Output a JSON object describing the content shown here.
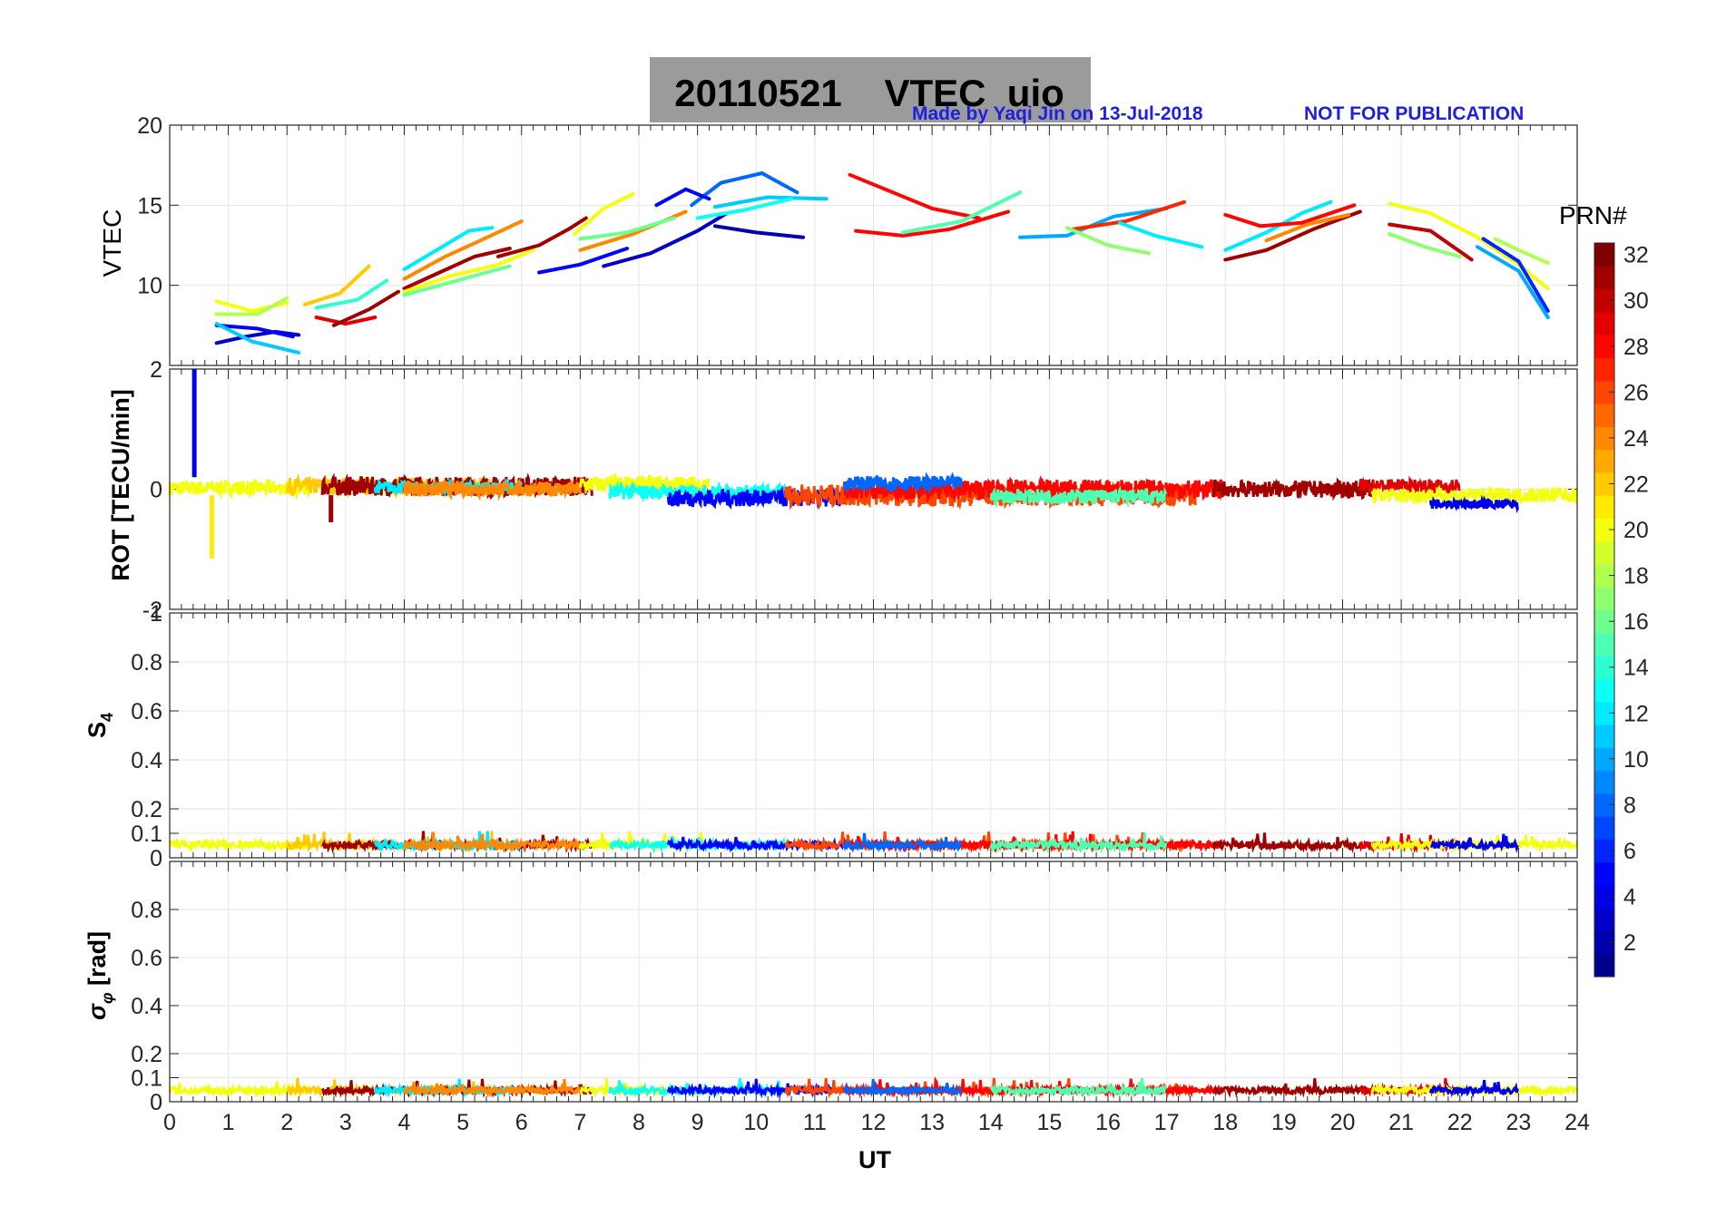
{
  "title": "20110521    VTEC  uio",
  "made_by": "Made by Yaqi Jin on 13-Jul-2018",
  "not_for_publication": "NOT FOR PUBLICATION",
  "colorbar_label": "PRN#",
  "colormap": [
    "#00008f",
    "#0000ff",
    "#0080ff",
    "#00ffff",
    "#80ff80",
    "#ffff00",
    "#ff8000",
    "#ff0000",
    "#800000"
  ],
  "chart_data": [
    {
      "type": "line",
      "panel": "vtec",
      "ylabel": "VTEC",
      "xlabel": "",
      "xlim": [
        0,
        24
      ],
      "ylim": [
        5,
        20
      ],
      "yticks": [
        10,
        15,
        20
      ],
      "xticks": [
        0,
        1,
        2,
        3,
        4,
        5,
        6,
        7,
        8,
        9,
        10,
        11,
        12,
        13,
        14,
        15,
        16,
        17,
        18,
        19,
        20,
        21,
        22,
        23,
        24
      ],
      "grid": true,
      "series": [
        {
          "prn": 3,
          "x": [
            0.8,
            1.3,
            1.8,
            2.2
          ],
          "y": [
            6.4,
            6.8,
            7.1,
            6.9
          ]
        },
        {
          "prn": 5,
          "x": [
            0.8,
            1.5,
            2.1
          ],
          "y": [
            7.5,
            7.3,
            6.8
          ]
        },
        {
          "prn": 11,
          "x": [
            0.8,
            1.4,
            2.2
          ],
          "y": [
            7.6,
            6.5,
            5.8
          ]
        },
        {
          "prn": 20,
          "x": [
            0.8,
            1.4,
            2.0
          ],
          "y": [
            9.0,
            8.4,
            8.9
          ]
        },
        {
          "prn": 18,
          "x": [
            0.8,
            1.5,
            2.0
          ],
          "y": [
            8.2,
            8.2,
            9.2
          ]
        },
        {
          "prn": 29,
          "x": [
            2.5,
            3.0,
            3.5
          ],
          "y": [
            8.0,
            7.6,
            8.0
          ]
        },
        {
          "prn": 22,
          "x": [
            2.3,
            2.9,
            3.4
          ],
          "y": [
            8.8,
            9.5,
            11.2
          ]
        },
        {
          "prn": 14,
          "x": [
            2.5,
            3.2,
            3.7
          ],
          "y": [
            8.6,
            9.1,
            10.3
          ]
        },
        {
          "prn": 31,
          "x": [
            2.8,
            3.4,
            3.9
          ],
          "y": [
            7.5,
            8.5,
            9.6
          ]
        },
        {
          "prn": 12,
          "x": [
            4.0,
            4.6,
            5.1,
            5.5
          ],
          "y": [
            11.0,
            12.3,
            13.4,
            13.6
          ]
        },
        {
          "prn": 24,
          "x": [
            4.0,
            4.7,
            5.3,
            6.0
          ],
          "y": [
            10.4,
            11.8,
            12.8,
            14.0
          ]
        },
        {
          "prn": 31,
          "x": [
            4.0,
            4.6,
            5.2,
            5.8
          ],
          "y": [
            9.8,
            10.8,
            11.8,
            12.3
          ]
        },
        {
          "prn": 20,
          "x": [
            4.0,
            4.8,
            5.6,
            6.2
          ],
          "y": [
            9.6,
            10.6,
            11.3,
            12.2
          ]
        },
        {
          "prn": 16,
          "x": [
            4.0,
            4.9,
            5.8
          ],
          "y": [
            9.4,
            10.3,
            11.2
          ]
        },
        {
          "prn": 31,
          "x": [
            5.6,
            6.3,
            6.8,
            7.1
          ],
          "y": [
            11.8,
            12.5,
            13.5,
            14.2
          ]
        },
        {
          "prn": 5,
          "x": [
            6.3,
            7.0,
            7.8
          ],
          "y": [
            10.8,
            11.3,
            12.3
          ]
        },
        {
          "prn": 3,
          "x": [
            7.4,
            8.2,
            9.0,
            9.5
          ],
          "y": [
            11.2,
            12.0,
            13.4,
            14.5
          ]
        },
        {
          "prn": 20,
          "x": [
            6.9,
            7.4,
            7.9
          ],
          "y": [
            13.2,
            14.8,
            15.7
          ]
        },
        {
          "prn": 24,
          "x": [
            7.0,
            7.9,
            8.8
          ],
          "y": [
            12.2,
            13.2,
            14.6
          ]
        },
        {
          "prn": 16,
          "x": [
            7.0,
            7.8,
            8.6
          ],
          "y": [
            12.9,
            13.3,
            14.2
          ]
        },
        {
          "prn": 8,
          "x": [
            8.9,
            9.4,
            10.1,
            10.7
          ],
          "y": [
            15.0,
            16.4,
            17.0,
            15.8
          ]
        },
        {
          "prn": 5,
          "x": [
            8.3,
            8.8,
            9.2
          ],
          "y": [
            15.0,
            16.0,
            15.4
          ]
        },
        {
          "prn": 2,
          "x": [
            9.3,
            10.0,
            10.8
          ],
          "y": [
            13.7,
            13.3,
            13.0
          ]
        },
        {
          "prn": 11,
          "x": [
            9.3,
            10.2,
            11.2
          ],
          "y": [
            14.9,
            15.5,
            15.4
          ]
        },
        {
          "prn": 13,
          "x": [
            9.0,
            9.8,
            10.6
          ],
          "y": [
            14.2,
            14.7,
            15.4
          ]
        },
        {
          "prn": 28,
          "x": [
            11.6,
            12.2,
            13.0,
            13.8
          ],
          "y": [
            16.9,
            16.0,
            14.8,
            14.2
          ]
        },
        {
          "prn": 28,
          "x": [
            11.7,
            12.5,
            13.3,
            14.3
          ],
          "y": [
            13.4,
            13.1,
            13.5,
            14.6
          ]
        },
        {
          "prn": 15,
          "x": [
            12.5,
            13.5,
            14.5
          ],
          "y": [
            13.3,
            14.0,
            15.8
          ]
        },
        {
          "prn": 10,
          "x": [
            14.5,
            15.3,
            16.1,
            17.0
          ],
          "y": [
            13.0,
            13.1,
            14.3,
            14.8
          ]
        },
        {
          "prn": 27,
          "x": [
            15.4,
            16.3,
            17.3
          ],
          "y": [
            13.5,
            14.0,
            15.2
          ]
        },
        {
          "prn": 17,
          "x": [
            15.3,
            16.0,
            16.7
          ],
          "y": [
            13.6,
            12.5,
            12.0
          ]
        },
        {
          "prn": 12,
          "x": [
            16.2,
            16.8,
            17.6
          ],
          "y": [
            13.9,
            13.1,
            12.4
          ]
        },
        {
          "prn": 12,
          "x": [
            18.0,
            18.7,
            19.3,
            19.8
          ],
          "y": [
            12.2,
            13.3,
            14.5,
            15.2
          ]
        },
        {
          "prn": 28,
          "x": [
            18.0,
            18.6,
            19.3,
            20.2
          ],
          "y": [
            14.4,
            13.7,
            13.9,
            15.0
          ]
        },
        {
          "prn": 31,
          "x": [
            18.0,
            18.7,
            19.5,
            20.3
          ],
          "y": [
            11.6,
            12.2,
            13.5,
            14.6
          ]
        },
        {
          "prn": 24,
          "x": [
            18.7,
            19.4,
            20.1
          ],
          "y": [
            12.8,
            13.8,
            14.4
          ]
        },
        {
          "prn": 20,
          "x": [
            20.8,
            21.5,
            22.3,
            23.0,
            23.5
          ],
          "y": [
            15.1,
            14.5,
            13.0,
            11.3,
            9.8
          ]
        },
        {
          "prn": 30,
          "x": [
            20.8,
            21.5,
            22.2
          ],
          "y": [
            13.8,
            13.4,
            11.6
          ]
        },
        {
          "prn": 17,
          "x": [
            20.8,
            21.4,
            22.0
          ],
          "y": [
            13.2,
            12.4,
            11.8
          ]
        },
        {
          "prn": 6,
          "x": [
            22.4,
            23.0,
            23.5
          ],
          "y": [
            12.9,
            11.5,
            8.4
          ]
        },
        {
          "prn": 10,
          "x": [
            22.3,
            23.0,
            23.5
          ],
          "y": [
            12.4,
            10.9,
            8.0
          ]
        },
        {
          "prn": 18,
          "x": [
            22.6,
            23.0,
            23.5
          ],
          "y": [
            12.9,
            12.2,
            11.4
          ]
        }
      ]
    },
    {
      "type": "line",
      "panel": "rot",
      "ylabel": "ROT [TECU/min]",
      "xlim": [
        0,
        24
      ],
      "ylim": [
        -2,
        2
      ],
      "yticks": [
        -2,
        0,
        2
      ],
      "grid": true,
      "segments": [
        {
          "prn": 20,
          "x0": 0.0,
          "x1": 2.4,
          "base": 0.02,
          "amp": 0.12
        },
        {
          "prn": 22,
          "x0": 2.0,
          "x1": 5.5,
          "base": 0.05,
          "amp": 0.14
        },
        {
          "prn": 31,
          "x0": 2.6,
          "x1": 7.2,
          "base": 0.05,
          "amp": 0.16
        },
        {
          "prn": 12,
          "x0": 3.5,
          "x1": 6.0,
          "base": 0.03,
          "amp": 0.1
        },
        {
          "prn": 24,
          "x0": 4.0,
          "x1": 7.0,
          "base": 0.0,
          "amp": 0.12
        },
        {
          "prn": 20,
          "x0": 7.0,
          "x1": 9.2,
          "base": 0.08,
          "amp": 0.14
        },
        {
          "prn": 13,
          "x0": 7.5,
          "x1": 10.5,
          "base": -0.05,
          "amp": 0.12
        },
        {
          "prn": 5,
          "x0": 8.5,
          "x1": 11.5,
          "base": -0.15,
          "amp": 0.14
        },
        {
          "prn": 26,
          "x0": 10.5,
          "x1": 17.5,
          "base": -0.1,
          "amp": 0.18
        },
        {
          "prn": 28,
          "x0": 11.5,
          "x1": 18.0,
          "base": 0.0,
          "amp": 0.16
        },
        {
          "prn": 8,
          "x0": 11.5,
          "x1": 13.5,
          "base": 0.1,
          "amp": 0.12
        },
        {
          "prn": 15,
          "x0": 14.0,
          "x1": 17.0,
          "base": -0.12,
          "amp": 0.12
        },
        {
          "prn": 31,
          "x0": 17.8,
          "x1": 20.5,
          "base": 0.0,
          "amp": 0.14
        },
        {
          "prn": 29,
          "x0": 20.3,
          "x1": 22.0,
          "base": 0.05,
          "amp": 0.12
        },
        {
          "prn": 20,
          "x0": 20.5,
          "x1": 24.0,
          "base": -0.1,
          "amp": 0.12
        },
        {
          "prn": 4,
          "x0": 21.5,
          "x1": 23.0,
          "base": -0.25,
          "amp": 0.08
        }
      ],
      "spikes": [
        {
          "prn": 4,
          "x": 0.42,
          "y0": 0.2,
          "y1": 2.0
        },
        {
          "prn": 21,
          "x": 0.72,
          "y0": -0.1,
          "y1": -1.15
        },
        {
          "prn": 31,
          "x": 2.75,
          "y0": -0.1,
          "y1": -0.55
        }
      ]
    },
    {
      "type": "line",
      "panel": "s4",
      "ylabel": "S4",
      "xlim": [
        0,
        24
      ],
      "ylim": [
        0,
        1
      ],
      "yticks": [
        0,
        0.1,
        0.2,
        0.4,
        0.6,
        0.8,
        1
      ],
      "grid": true,
      "typical_level": 0.05,
      "peak_level": 0.1
    },
    {
      "type": "line",
      "panel": "sigma_phi",
      "ylabel": "σφ [rad]",
      "xlabel": "UT",
      "xlim": [
        0,
        24
      ],
      "ylim": [
        0,
        1
      ],
      "yticks": [
        0,
        0.1,
        0.2,
        0.4,
        0.6,
        0.8
      ],
      "grid": true,
      "typical_level": 0.045,
      "peak_level": 0.09
    },
    {
      "type": "heatmap",
      "panel": "colorbar",
      "label": "PRN#",
      "range": [
        1,
        32
      ],
      "ticks": [
        2,
        4,
        6,
        8,
        10,
        12,
        14,
        16,
        18,
        20,
        22,
        24,
        26,
        28,
        30,
        32
      ]
    }
  ]
}
